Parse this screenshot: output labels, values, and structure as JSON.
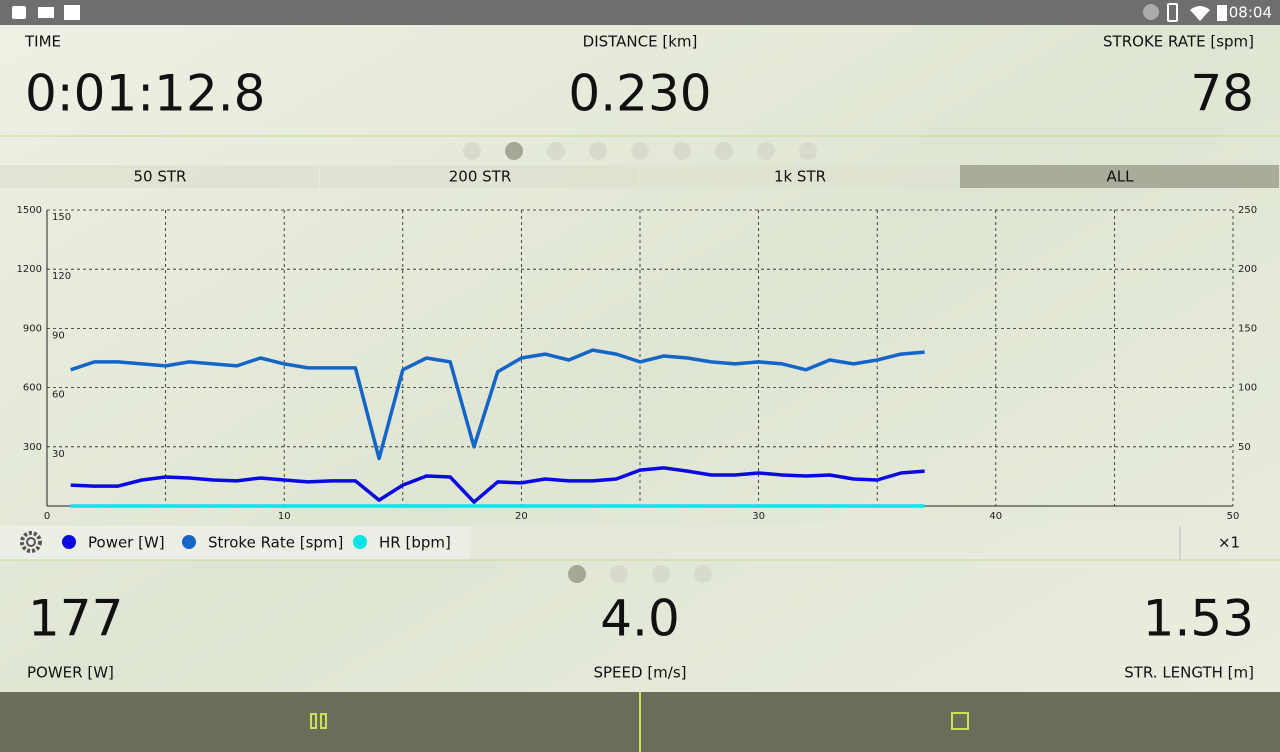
{
  "status_bar": {
    "time": "08:04"
  },
  "metrics_top": [
    {
      "label": "TIME",
      "value": "0:01:12.8"
    },
    {
      "label": "DISTANCE [km]",
      "value": "0.230"
    },
    {
      "label": "STROKE RATE [spm]",
      "value": "78"
    }
  ],
  "tabs": [
    "50 STR",
    "200 STR",
    "1k STR",
    "ALL"
  ],
  "active_tab": 3,
  "chart_data": {
    "type": "line",
    "x": [
      1,
      2,
      3,
      4,
      5,
      6,
      7,
      8,
      9,
      10,
      11,
      12,
      13,
      14,
      15,
      16,
      17,
      18,
      19,
      20,
      21,
      22,
      23,
      24,
      25,
      26,
      27,
      28,
      29,
      30,
      31,
      32,
      33,
      34,
      35,
      36,
      37
    ],
    "series": [
      {
        "name": "Power [W]",
        "color": "#0a0ae0",
        "axis": "y",
        "values": [
          106,
          101,
          101,
          132,
          147,
          142,
          132,
          127,
          142,
          132,
          122,
          127,
          127,
          30,
          106,
          152,
          147,
          20,
          122,
          117,
          137,
          127,
          127,
          137,
          182,
          193,
          177,
          157,
          157,
          167,
          157,
          152,
          157,
          137,
          132,
          167,
          177
        ]
      },
      {
        "name": "Stroke Rate [spm]",
        "color": "#1565c8",
        "axis": "y3",
        "values": [
          69,
          73,
          73,
          72,
          71,
          73,
          72,
          71,
          75,
          72,
          70,
          70,
          70,
          24,
          69,
          75,
          73,
          30,
          68,
          75,
          77,
          74,
          79,
          77,
          73,
          76,
          75,
          73,
          72,
          73,
          72,
          69,
          74,
          72,
          74,
          77,
          78
        ]
      },
      {
        "name": "HR [bpm]",
        "color": "#00e5e5",
        "axis": "y2",
        "values": [
          0,
          0,
          0,
          0,
          0,
          0,
          0,
          0,
          0,
          0,
          0,
          0,
          0,
          0,
          0,
          0,
          0,
          0,
          0,
          0,
          0,
          0,
          0,
          0,
          0,
          0,
          0,
          0,
          0,
          0,
          0,
          0,
          0,
          0,
          0,
          0,
          0
        ]
      }
    ],
    "xlim": [
      0,
      50
    ],
    "xticks": [
      0,
      10,
      20,
      30,
      40,
      50
    ],
    "x_minor_ticks": [
      5,
      15,
      25,
      35,
      45
    ],
    "ylim": [
      0,
      1500
    ],
    "yticks": [
      300,
      600,
      900,
      1200,
      1500
    ],
    "y3lim": [
      0,
      150
    ],
    "y3ticks": [
      30,
      60,
      90,
      120,
      150
    ],
    "y2lim": [
      0,
      250
    ],
    "y2ticks": [
      50,
      100,
      150,
      200,
      250
    ],
    "grid": true
  },
  "zoom": "×1",
  "metrics_bottom": [
    {
      "label": "POWER [W]",
      "value": "177"
    },
    {
      "label": "SPEED [m/s]",
      "value": "4.0"
    },
    {
      "label": "STR. LENGTH [m]",
      "value": "1.53"
    }
  ]
}
